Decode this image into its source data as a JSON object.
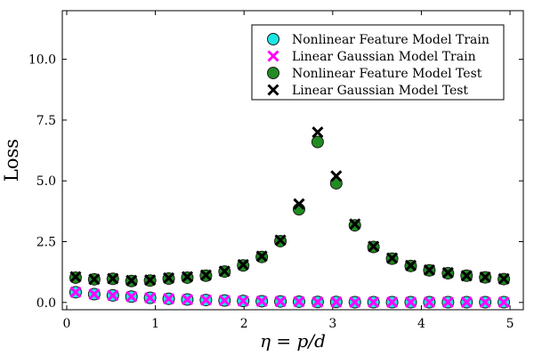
{
  "chart_data": {
    "type": "scatter",
    "xlabel": "η = p/d",
    "ylabel": "Loss",
    "xlim": [
      -0.05,
      5.15
    ],
    "ylim": [
      -0.3,
      12.0
    ],
    "xticks": [
      "0",
      "1",
      "2",
      "3",
      "4",
      "5"
    ],
    "yticks": [
      "0.0",
      "2.5",
      "5.0",
      "7.5",
      "10.0"
    ],
    "grid": false,
    "legend_position": "top-right",
    "x": [
      0.1,
      0.31,
      0.52,
      0.73,
      0.94,
      1.15,
      1.36,
      1.57,
      1.78,
      1.99,
      2.2,
      2.41,
      2.62,
      2.83,
      3.04,
      3.25,
      3.46,
      3.67,
      3.88,
      4.09,
      4.3,
      4.51,
      4.72,
      4.93
    ],
    "series": [
      {
        "name": "Nonlinear Feature Model Train",
        "marker": "circle",
        "color": "#1ee5e5",
        "values": [
          0.42,
          0.34,
          0.29,
          0.24,
          0.19,
          0.15,
          0.12,
          0.1,
          0.08,
          0.06,
          0.05,
          0.04,
          0.03,
          0.02,
          0.02,
          0.01,
          0.01,
          0.01,
          0.01,
          0.01,
          0.01,
          0.01,
          0.01,
          0.01
        ]
      },
      {
        "name": "Linear Gaussian Model Train",
        "marker": "x",
        "color": "#ff00ff",
        "values": [
          0.42,
          0.34,
          0.29,
          0.24,
          0.19,
          0.15,
          0.12,
          0.1,
          0.08,
          0.06,
          0.05,
          0.04,
          0.03,
          0.02,
          0.02,
          0.01,
          0.01,
          0.01,
          0.01,
          0.01,
          0.01,
          0.01,
          0.01,
          0.01
        ]
      },
      {
        "name": "Nonlinear Feature Model Test",
        "marker": "circle",
        "color": "#228b22",
        "values": [
          1.02,
          0.95,
          0.97,
          0.88,
          0.9,
          0.98,
          1.02,
          1.1,
          1.27,
          1.52,
          1.87,
          2.52,
          3.83,
          6.6,
          4.9,
          3.17,
          2.28,
          1.8,
          1.5,
          1.32,
          1.2,
          1.1,
          1.03,
          0.96
        ]
      },
      {
        "name": "Linear Gaussian Model Test",
        "marker": "x",
        "color": "#000000",
        "values": [
          1.05,
          0.95,
          0.98,
          0.9,
          0.92,
          1.0,
          1.05,
          1.12,
          1.28,
          1.55,
          1.9,
          2.56,
          4.05,
          7.0,
          5.2,
          3.22,
          2.3,
          1.82,
          1.52,
          1.33,
          1.22,
          1.1,
          1.04,
          0.97
        ]
      }
    ]
  }
}
